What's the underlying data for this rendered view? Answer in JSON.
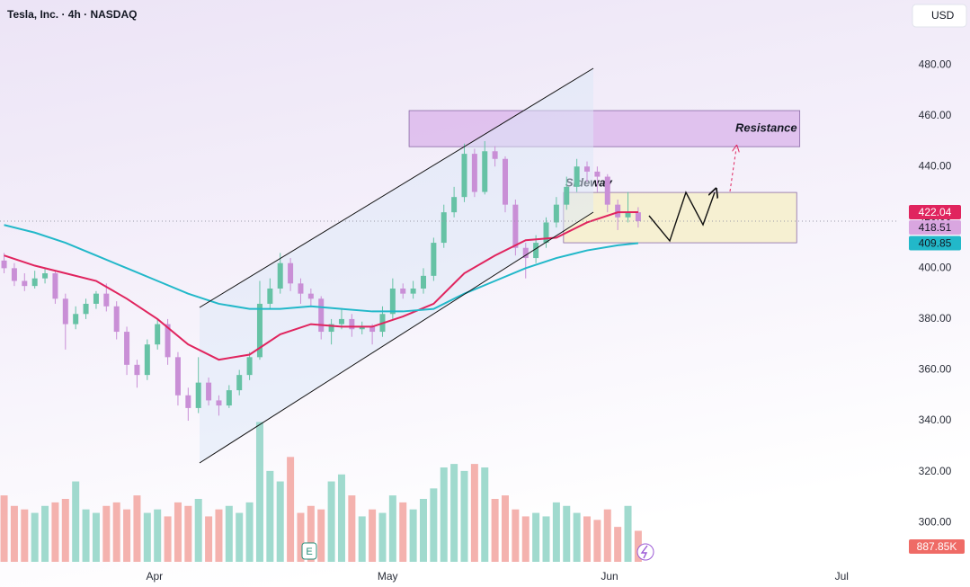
{
  "chart_data": {
    "type": "candlestick",
    "title": "Tesla, Inc. · 4h · NASDAQ",
    "currency": "USD",
    "ylim": [
      284.5,
      505.5
    ],
    "yticks": [
      {
        "value": 300,
        "label": "300.00"
      },
      {
        "value": 320,
        "label": "320.00"
      },
      {
        "value": 340,
        "label": "340.00"
      },
      {
        "value": 360,
        "label": "360.00"
      },
      {
        "value": 380,
        "label": "380.00"
      },
      {
        "value": 400,
        "label": "400.00"
      },
      {
        "value": 420,
        "label": "420.00"
      },
      {
        "value": 440,
        "label": "440.00"
      },
      {
        "value": 460,
        "label": "460.00"
      },
      {
        "value": 480,
        "label": "480.00"
      }
    ],
    "xlim": [
      -0.4,
      87.5
    ],
    "xticks": [
      {
        "value": 14.7,
        "label": "Apr"
      },
      {
        "value": 37.5,
        "label": "May"
      },
      {
        "value": 59.2,
        "label": "Jun"
      },
      {
        "value": 81.9,
        "label": "Jul"
      }
    ],
    "up_color": "#66c2a5",
    "down_color": "#c98fd6",
    "last_price_color": "#d9a6e0",
    "ohlc": [
      [
        403,
        406,
        398,
        400
      ],
      [
        400,
        402,
        393,
        395
      ],
      [
        395,
        398,
        391,
        393
      ],
      [
        393,
        399,
        392,
        396
      ],
      [
        396,
        400,
        394,
        398
      ],
      [
        398,
        399,
        386,
        388
      ],
      [
        388,
        390,
        368,
        378
      ],
      [
        378,
        385,
        376,
        382
      ],
      [
        382,
        388,
        380,
        386
      ],
      [
        386,
        391,
        384,
        390
      ],
      [
        390,
        394,
        383,
        385
      ],
      [
        385,
        387,
        372,
        375
      ],
      [
        375,
        377,
        358,
        362
      ],
      [
        362,
        364,
        353,
        358
      ],
      [
        358,
        372,
        356,
        370
      ],
      [
        370,
        380,
        368,
        378
      ],
      [
        378,
        380,
        362,
        365
      ],
      [
        365,
        367,
        346,
        350
      ],
      [
        350,
        353,
        340,
        345
      ],
      [
        345,
        365,
        343,
        355
      ],
      [
        355,
        357,
        346,
        348
      ],
      [
        348,
        350,
        342,
        346
      ],
      [
        346,
        354,
        345,
        352
      ],
      [
        352,
        360,
        350,
        358
      ],
      [
        358,
        367,
        356,
        365
      ],
      [
        365,
        395,
        364,
        386
      ],
      [
        386,
        396,
        384,
        392
      ],
      [
        392,
        406,
        390,
        402
      ],
      [
        402,
        404,
        391,
        394
      ],
      [
        394,
        396,
        386,
        390
      ],
      [
        390,
        392,
        385,
        388
      ],
      [
        388,
        389,
        372,
        375
      ],
      [
        375,
        380,
        370,
        378
      ],
      [
        378,
        384,
        376,
        380
      ],
      [
        380,
        382,
        373,
        376
      ],
      [
        376,
        379,
        374,
        377
      ],
      [
        377,
        378,
        370,
        375
      ],
      [
        375,
        385,
        373,
        382
      ],
      [
        382,
        396,
        380,
        392
      ],
      [
        392,
        394,
        388,
        390
      ],
      [
        390,
        395,
        388,
        392
      ],
      [
        392,
        400,
        390,
        397
      ],
      [
        397,
        412,
        395,
        410
      ],
      [
        410,
        425,
        408,
        422
      ],
      [
        422,
        432,
        420,
        428
      ],
      [
        428,
        449,
        426,
        445
      ],
      [
        445,
        447,
        428,
        430
      ],
      [
        430,
        450,
        429,
        446
      ],
      [
        446,
        448,
        440,
        443
      ],
      [
        443,
        444,
        422,
        425
      ],
      [
        425,
        427,
        405,
        408
      ],
      [
        408,
        410,
        396,
        404
      ],
      [
        404,
        413,
        402,
        410
      ],
      [
        410,
        420,
        408,
        418
      ],
      [
        418,
        428,
        416,
        425
      ],
      [
        425,
        436,
        423,
        432
      ],
      [
        432,
        443,
        430,
        440
      ],
      [
        440,
        442,
        434,
        438
      ],
      [
        438,
        440,
        430,
        436
      ],
      [
        436,
        437,
        422,
        425
      ],
      [
        425,
        427,
        415,
        420
      ],
      [
        420,
        430,
        418,
        422
      ],
      [
        422,
        424,
        416,
        418.51
      ]
    ],
    "volume": [
      1900,
      1600,
      1500,
      1400,
      1600,
      1700,
      1800,
      2300,
      1500,
      1400,
      1600,
      1700,
      1500,
      1900,
      1400,
      1500,
      1300,
      1700,
      1600,
      1800,
      1300,
      1500,
      1600,
      1400,
      1700,
      4000,
      2600,
      2300,
      3000,
      1400,
      1600,
      1500,
      2300,
      2500,
      1900,
      1300,
      1500,
      1400,
      1900,
      1700,
      1500,
      1800,
      2100,
      2700,
      2800,
      2600,
      2800,
      2700,
      1800,
      1900,
      1500,
      1300,
      1400,
      1300,
      1700,
      1600,
      1400,
      1300,
      1200,
      1500,
      1000,
      1600,
      887.85
    ],
    "volume_lim": [
      0,
      4500
    ],
    "volume_last_label": "887.85K",
    "volume_up_color": "#8fd3c6",
    "volume_down_color": "#f2a5a0",
    "moving_averages": [
      {
        "color": "#e0245e",
        "x": [
          0,
          3,
          6,
          9,
          12,
          15,
          18,
          21,
          24,
          27,
          30,
          33,
          36,
          39,
          42,
          45,
          48,
          51,
          54,
          57,
          60,
          62
        ],
        "values": [
          405,
          401,
          398,
          395,
          388,
          380,
          370,
          364,
          366,
          374,
          378,
          377,
          377,
          381,
          386,
          398,
          405,
          411,
          412,
          418,
          422,
          422.04
        ]
      },
      {
        "color": "#22b8c9",
        "x": [
          0,
          3,
          6,
          9,
          12,
          15,
          18,
          21,
          24,
          27,
          30,
          33,
          36,
          39,
          42,
          45,
          48,
          51,
          54,
          57,
          60,
          62
        ],
        "values": [
          417,
          414,
          410,
          405,
          400,
          395,
          390,
          386,
          384,
          384,
          385,
          384,
          383,
          383,
          384,
          390,
          395,
          400,
          404,
          407,
          409,
          409.85
        ]
      }
    ],
    "zones": [
      {
        "label": "Resistance",
        "x": [
          39.6,
          77.8
        ],
        "range": [
          447.8,
          462
        ],
        "color": "#d9b3ea"
      },
      {
        "label": "Sideway",
        "x": [
          54.7,
          77.5
        ],
        "range": [
          410,
          429.8
        ],
        "color": "#f6efc4"
      }
    ]
  }
}
